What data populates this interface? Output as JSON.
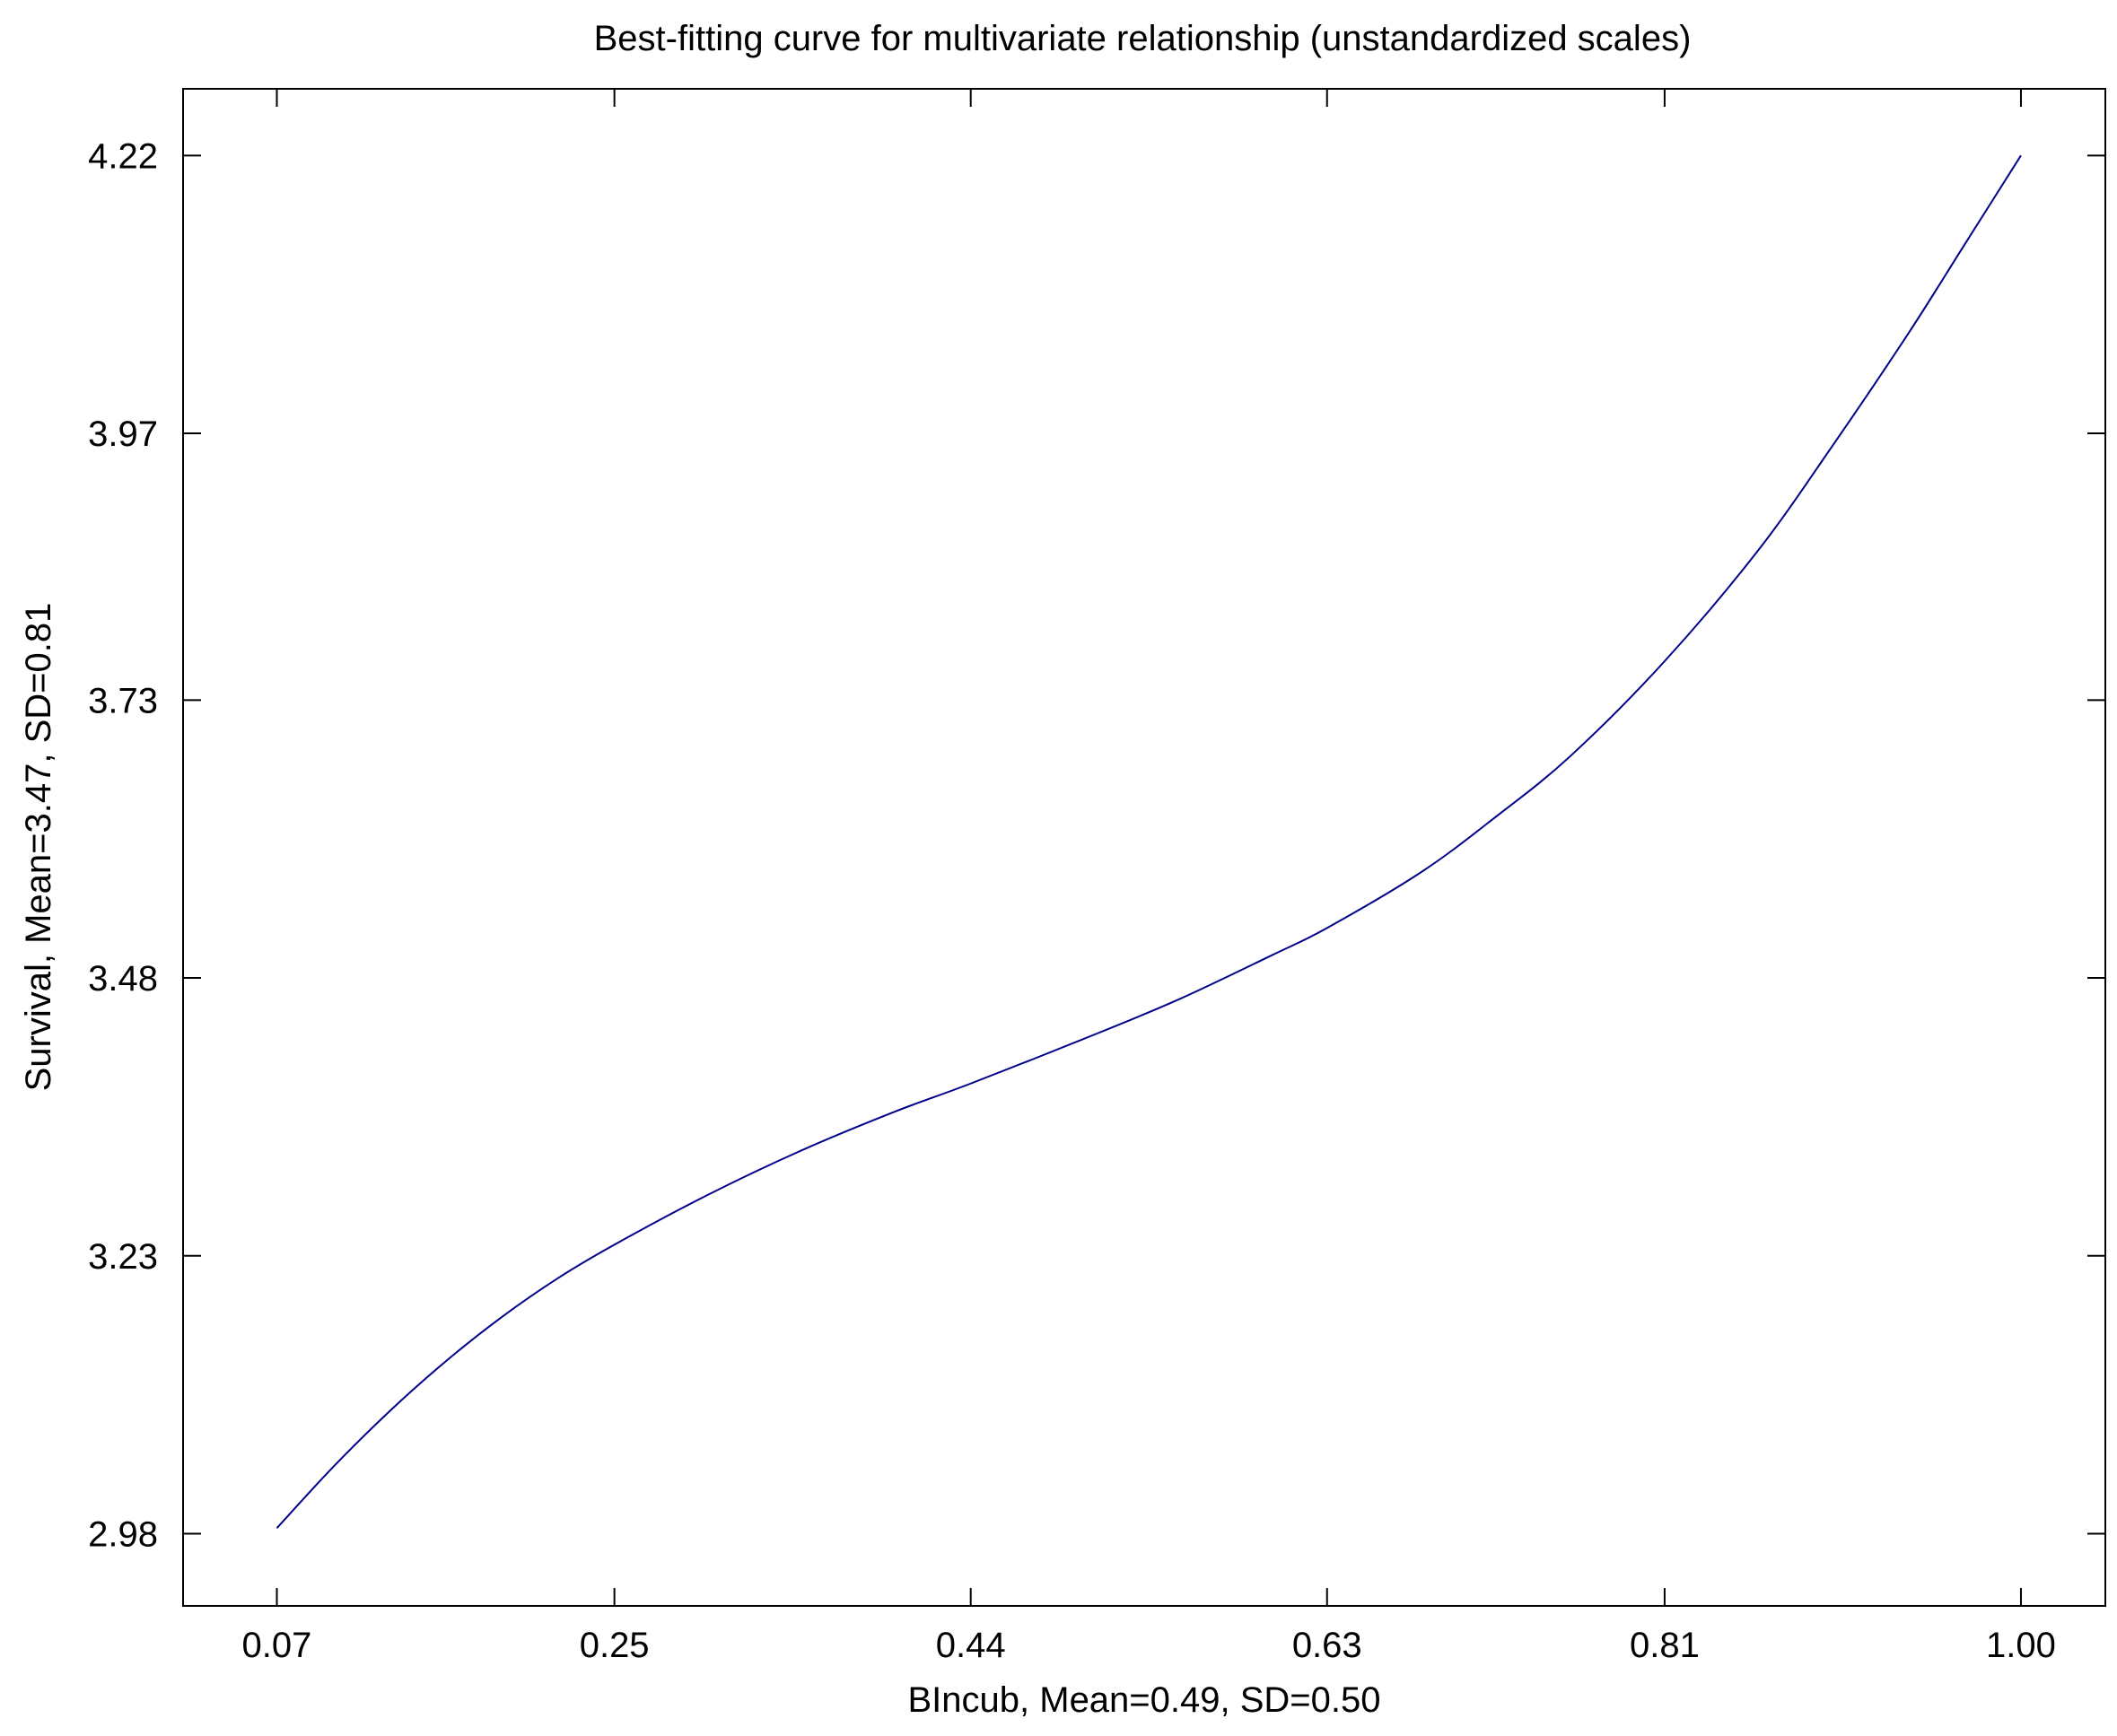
{
  "chart_data": {
    "type": "line",
    "title": "Best-fitting curve for multivariate relationship (unstandardized scales)",
    "xlabel": "BIncub, Mean=0.49, SD=0.50",
    "ylabel": "Survival, Mean=3.47, SD=0.81",
    "xlim": [
      0.02,
      1.045
    ],
    "ylim": [
      2.915,
      4.28
    ],
    "x_ticks": [
      0.07,
      0.25,
      0.44,
      0.63,
      0.81,
      1.0
    ],
    "x_tick_labels": [
      "0.07",
      "0.25",
      "0.44",
      "0.63",
      "0.81",
      "1.00"
    ],
    "y_ticks": [
      2.98,
      3.23,
      3.48,
      3.73,
      3.97,
      4.22
    ],
    "y_tick_labels": [
      "2.98",
      "3.23",
      "3.48",
      "3.73",
      "3.97",
      "4.22"
    ],
    "grid": false,
    "line_color": "#00008b",
    "series": [
      {
        "x": [
          0.07,
          0.1,
          0.13,
          0.16,
          0.19,
          0.22,
          0.25,
          0.3,
          0.35,
          0.4,
          0.44,
          0.5,
          0.55,
          0.6,
          0.63,
          0.68,
          0.72,
          0.76,
          0.81,
          0.86,
          0.9,
          0.94,
          0.97,
          1.0
        ],
        "y": [
          2.985,
          3.04,
          3.09,
          3.135,
          3.175,
          3.21,
          3.24,
          3.285,
          3.325,
          3.36,
          3.385,
          3.425,
          3.46,
          3.5,
          3.525,
          3.575,
          3.625,
          3.68,
          3.765,
          3.865,
          3.96,
          4.06,
          4.14,
          4.22
        ]
      }
    ]
  }
}
